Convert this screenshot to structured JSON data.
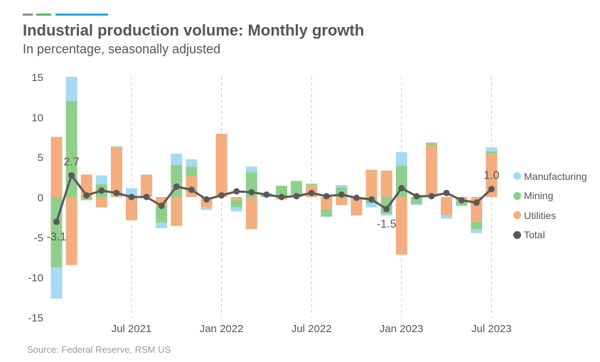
{
  "header": {
    "title": "Industrial production volume: Monthly growth",
    "subtitle": "In percentage, seasonally adjusted"
  },
  "footer": {
    "source": "Source: Federal Reserve, RSM US"
  },
  "colors": {
    "manufacturing": "#a6d9f2",
    "mining": "#8fcf8c",
    "utilities": "#f3ad7f",
    "total": "#595959",
    "axis_text": "#555555",
    "grid": "#c8c8c8"
  },
  "chart_data": {
    "type": "bar",
    "stacked": true,
    "ylim": [
      -15,
      15
    ],
    "yticks": [
      15,
      10,
      5,
      0,
      -5,
      -10,
      -15
    ],
    "categories": [
      "Feb 2021",
      "Mar 2021",
      "Apr 2021",
      "May 2021",
      "Jun 2021",
      "Jul 2021",
      "Aug 2021",
      "Sep 2021",
      "Oct 2021",
      "Nov 2021",
      "Dec 2021",
      "Jan 2022",
      "Feb 2022",
      "Mar 2022",
      "Apr 2022",
      "May 2022",
      "Jun 2022",
      "Jul 2022",
      "Aug 2022",
      "Sep 2022",
      "Oct 2022",
      "Nov 2022",
      "Dec 2022",
      "Jan 2023",
      "Feb 2023",
      "Mar 2023",
      "Apr 2023",
      "May 2023",
      "Jun 2023",
      "Jul 2023"
    ],
    "xtick_labels": [
      {
        "category": "Jul 2021",
        "label": "Jul 2021"
      },
      {
        "category": "Jan 2022",
        "label": "Jan 2022"
      },
      {
        "category": "Jul 2022",
        "label": "Jul 2022"
      },
      {
        "category": "Jan 2023",
        "label": "Jan 2023"
      },
      {
        "category": "Jul 2023",
        "label": "Jul 2023"
      }
    ],
    "series": [
      {
        "name": "Utilities",
        "key": "utilities",
        "values": [
          7.5,
          -8.5,
          2.8,
          -1.3,
          6.2,
          -2.9,
          2.8,
          -1.2,
          -3.6,
          2.6,
          -1.3,
          7.9,
          -0.3,
          -4.0,
          0.0,
          -0.3,
          0.0,
          1.4,
          -1.5,
          -1.0,
          -2.3,
          3.4,
          3.3,
          -7.2,
          0.0,
          6.4,
          -2.3,
          -0.4,
          -3.1,
          5.4
        ]
      },
      {
        "name": "Mining",
        "key": "mining",
        "values": [
          -8.8,
          12.0,
          -0.4,
          1.6,
          0.1,
          0.0,
          0.0,
          -2.0,
          4.0,
          1.2,
          0.0,
          0.0,
          -1.0,
          3.1,
          0.3,
          1.4,
          2.0,
          0.2,
          -0.9,
          1.2,
          0.0,
          -0.8,
          -2.1,
          3.9,
          -0.9,
          0.4,
          0.0,
          -0.7,
          -0.9,
          0.3
        ]
      },
      {
        "name": "Manufacturing",
        "key": "manufacturing",
        "values": [
          -3.9,
          3.0,
          0.0,
          1.1,
          0.0,
          1.1,
          0.0,
          -0.7,
          1.4,
          0.9,
          -0.3,
          0.0,
          -0.5,
          0.7,
          0.2,
          0.0,
          0.0,
          0.1,
          -0.1,
          0.3,
          0.0,
          -0.5,
          -0.2,
          1.7,
          -0.1,
          0.0,
          -0.4,
          0.0,
          -0.5,
          0.5
        ]
      }
    ],
    "total": {
      "name": "Total",
      "values": [
        -3.1,
        2.7,
        0.2,
        0.8,
        0.5,
        0.0,
        0.0,
        -1.1,
        1.3,
        0.9,
        -0.3,
        0.2,
        0.7,
        0.6,
        0.3,
        0.0,
        0.1,
        0.5,
        0.1,
        0.3,
        -0.1,
        -0.3,
        -1.5,
        1.1,
        0.1,
        0.1,
        0.5,
        -0.4,
        -0.7,
        1.0
      ]
    },
    "annotations": [
      {
        "category": "Feb 2021",
        "text": "-3.1"
      },
      {
        "category": "Mar 2021",
        "text": "2.7"
      },
      {
        "category": "Dec 2022",
        "text": "-1.5"
      },
      {
        "category": "Jul 2023",
        "text": "1.0"
      }
    ],
    "legend": {
      "placement": "right",
      "items": [
        {
          "label": "Manufacturing",
          "key": "manufacturing"
        },
        {
          "label": "Mining",
          "key": "mining"
        },
        {
          "label": "Utilities",
          "key": "utilities"
        },
        {
          "label": "Total",
          "key": "total"
        }
      ]
    },
    "grid": {
      "vertical_dashed": true
    }
  }
}
